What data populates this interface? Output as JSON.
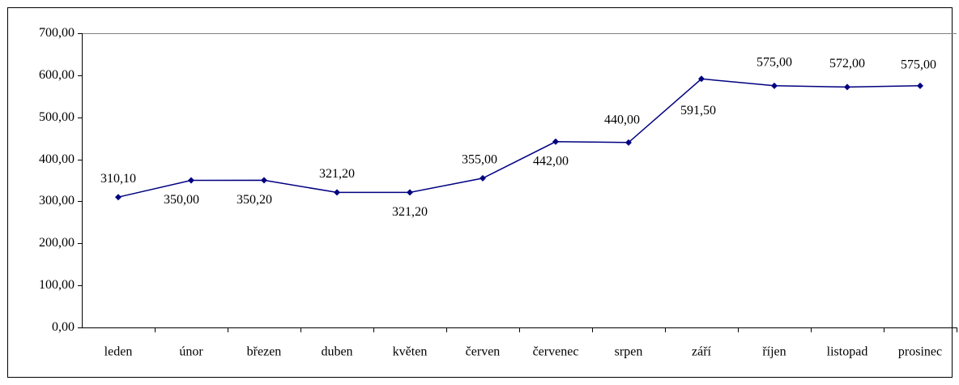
{
  "chart_data": {
    "type": "line",
    "categories": [
      "leden",
      "únor",
      "březen",
      "duben",
      "květen",
      "červen",
      "červenec",
      "srpen",
      "září",
      "říjen",
      "listopad",
      "prosinec"
    ],
    "series": [
      {
        "color": "#000080",
        "values": [
          310.1,
          350.0,
          350.2,
          321.2,
          321.2,
          355.0,
          442.0,
          440.0,
          591.5,
          575.0,
          572.0,
          575.0
        ],
        "value_labels": [
          "310,10",
          "350,00",
          "350,20",
          "321,20",
          "321,20",
          "355,00",
          "442,00",
          "440,00",
          "591,50",
          "575,00",
          "572,00",
          "575,00"
        ]
      }
    ],
    "ylim": [
      0,
      700
    ],
    "yticks": [
      {
        "value": 0,
        "label": "0,00"
      },
      {
        "value": 100,
        "label": "100,00"
      },
      {
        "value": 200,
        "label": "200,00"
      },
      {
        "value": 300,
        "label": "300,00"
      },
      {
        "value": 400,
        "label": "400,00"
      },
      {
        "value": 500,
        "label": "500,00"
      },
      {
        "value": 600,
        "label": "600,00"
      },
      {
        "value": 700,
        "label": "700,00"
      }
    ]
  }
}
